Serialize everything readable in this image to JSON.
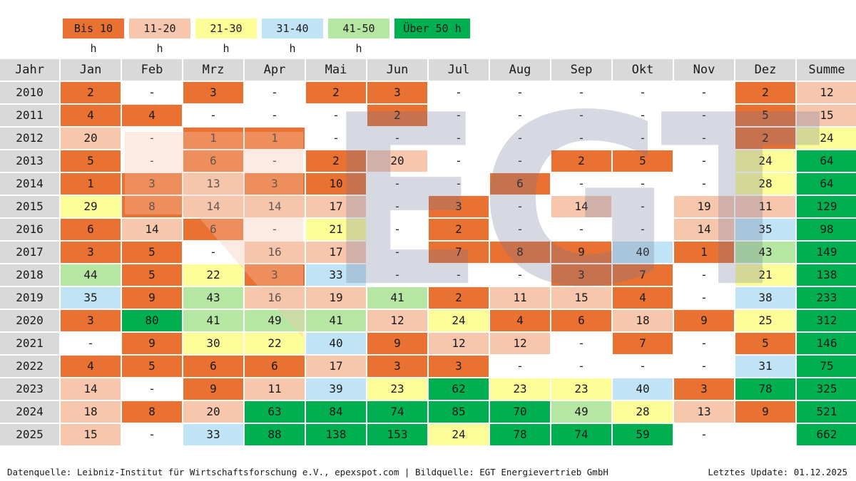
{
  "legend": [
    {
      "label": "Bis 10 h",
      "color": "#e97132"
    },
    {
      "label": "11-20 h",
      "color": "#f6c6ad"
    },
    {
      "label": "21-30 h",
      "color": "#fdfd98"
    },
    {
      "label": "31-40 h",
      "color": "#c0e4f5"
    },
    {
      "label": "41-50 h",
      "color": "#b5e6a2"
    },
    {
      "label": "Über 50 h",
      "color": "#00b050"
    }
  ],
  "watermark": "EGT",
  "chart_data": {
    "type": "table",
    "title": "",
    "columns": [
      "Jahr",
      "Jan",
      "Feb",
      "Mrz",
      "Apr",
      "Mai",
      "Jun",
      "Jul",
      "Aug",
      "Sep",
      "Okt",
      "Nov",
      "Dez",
      "Summe"
    ],
    "empty_symbol": "-",
    "rows": [
      {
        "year": "2010",
        "values": [
          2,
          null,
          3,
          null,
          2,
          3,
          null,
          null,
          null,
          null,
          null,
          2
        ],
        "sum": 12
      },
      {
        "year": "2011",
        "values": [
          4,
          4,
          null,
          null,
          null,
          2,
          null,
          null,
          null,
          null,
          null,
          5
        ],
        "sum": 15
      },
      {
        "year": "2012",
        "values": [
          20,
          null,
          1,
          1,
          null,
          null,
          null,
          null,
          null,
          null,
          null,
          2
        ],
        "sum": 24
      },
      {
        "year": "2013",
        "values": [
          5,
          null,
          6,
          null,
          2,
          20,
          null,
          null,
          2,
          5,
          null,
          24
        ],
        "sum": 64
      },
      {
        "year": "2014",
        "values": [
          1,
          3,
          13,
          3,
          10,
          null,
          null,
          6,
          null,
          null,
          null,
          28
        ],
        "sum": 64
      },
      {
        "year": "2015",
        "values": [
          29,
          8,
          14,
          14,
          17,
          null,
          3,
          null,
          14,
          null,
          19,
          11
        ],
        "sum": 129
      },
      {
        "year": "2016",
        "values": [
          6,
          14,
          6,
          null,
          21,
          null,
          2,
          null,
          null,
          null,
          14,
          35
        ],
        "sum": 98
      },
      {
        "year": "2017",
        "values": [
          3,
          5,
          null,
          16,
          17,
          null,
          7,
          8,
          9,
          40,
          1,
          43
        ],
        "sum": 149
      },
      {
        "year": "2018",
        "values": [
          44,
          5,
          22,
          3,
          33,
          null,
          null,
          null,
          3,
          7,
          null,
          21
        ],
        "sum": 138
      },
      {
        "year": "2019",
        "values": [
          35,
          9,
          43,
          16,
          19,
          41,
          2,
          11,
          15,
          4,
          null,
          38
        ],
        "sum": 233
      },
      {
        "year": "2020",
        "values": [
          3,
          80,
          41,
          49,
          41,
          12,
          24,
          4,
          6,
          18,
          9,
          25
        ],
        "sum": 312
      },
      {
        "year": "2021",
        "values": [
          null,
          9,
          30,
          22,
          40,
          9,
          12,
          12,
          null,
          7,
          null,
          5
        ],
        "sum": 146
      },
      {
        "year": "2022",
        "values": [
          4,
          5,
          6,
          6,
          17,
          3,
          3,
          null,
          null,
          null,
          null,
          31
        ],
        "sum": 75
      },
      {
        "year": "2023",
        "values": [
          14,
          null,
          9,
          11,
          39,
          23,
          62,
          23,
          23,
          40,
          3,
          78
        ],
        "sum": 325
      },
      {
        "year": "2024",
        "values": [
          18,
          8,
          20,
          63,
          84,
          74,
          85,
          70,
          49,
          28,
          13,
          9
        ],
        "sum": 521
      },
      {
        "year": "2025",
        "values": [
          15,
          null,
          33,
          88,
          138,
          153,
          24,
          78,
          74,
          59,
          null,
          "blank"
        ],
        "sum": 662
      }
    ]
  },
  "footer": {
    "source": "Datenquelle: Leibniz-Institut für Wirtschaftsforschung e.V., epexspot.com | Bildquelle: EGT Energievertrieb GmbH",
    "update": "Letztes Update: 01.12.2025"
  }
}
